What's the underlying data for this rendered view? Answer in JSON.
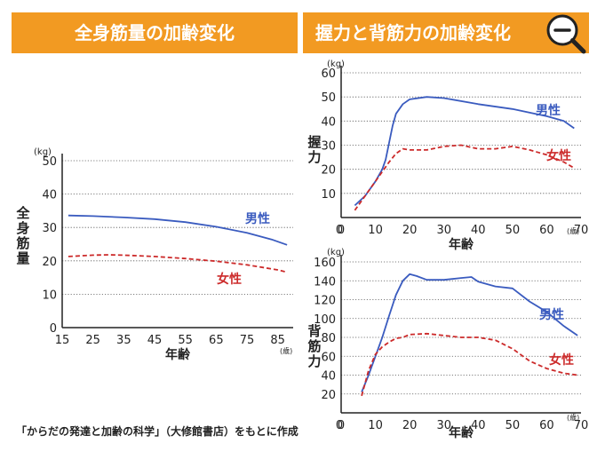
{
  "colors": {
    "banner": "#f29a22",
    "banner_text": "#ffffff",
    "male": "#3a5bbf",
    "female": "#cc2a2a",
    "axis": "#222222",
    "grid": "#555555"
  },
  "banners": {
    "left": "全身筋量の加齢変化",
    "right": "握力と背筋力の加齢変化"
  },
  "zoom_button": {
    "icon": "zoom-out-magnifier-icon"
  },
  "source_note": "「からだの発達と加齢の科学」（大修館書店）をもとに作成",
  "chart_data": [
    {
      "type": "line",
      "title": "全身筋量の加齢変化",
      "ylabel": "全身筋量",
      "yunit": "(kg)",
      "xlabel": "年齢",
      "xunit": "(歳)",
      "xlim": [
        15,
        90
      ],
      "ylim": [
        0,
        50
      ],
      "xticks": [
        15,
        25,
        35,
        45,
        55,
        65,
        75,
        85
      ],
      "yticks": [
        0,
        10,
        20,
        30,
        40,
        50
      ],
      "grid": true,
      "series": [
        {
          "name": "男性",
          "style": "solid",
          "x": [
            17,
            25,
            35,
            45,
            55,
            65,
            75,
            83,
            88
          ],
          "y": [
            33.6,
            33.4,
            33.0,
            32.5,
            31.6,
            30.2,
            28.4,
            26.4,
            24.8
          ]
        },
        {
          "name": "女性",
          "style": "dashed",
          "x": [
            17,
            25,
            30,
            35,
            45,
            55,
            65,
            75,
            85,
            88
          ],
          "y": [
            21.3,
            21.7,
            21.8,
            21.7,
            21.3,
            20.7,
            19.9,
            18.8,
            17.3,
            16.6
          ]
        }
      ]
    },
    {
      "type": "line",
      "title": "握力",
      "ylabel": "握力",
      "yunit": "(kg)",
      "xlabel": "年齢",
      "xunit": "(歳)",
      "xlim": [
        0,
        70
      ],
      "ylim": [
        0,
        60
      ],
      "xticks": [
        0,
        10,
        20,
        30,
        40,
        50,
        60,
        70
      ],
      "yticks": [
        10,
        20,
        30,
        40,
        50,
        60
      ],
      "grid": true,
      "series": [
        {
          "name": "男性",
          "style": "solid",
          "x": [
            4,
            7,
            10,
            12,
            13,
            14,
            15,
            16,
            18,
            20,
            25,
            30,
            40,
            50,
            60,
            65,
            68
          ],
          "y": [
            5,
            9,
            15,
            20,
            24,
            31,
            38,
            43,
            47,
            49,
            50,
            49.5,
            47,
            45,
            42,
            40,
            37
          ]
        },
        {
          "name": "女性",
          "style": "dashed",
          "x": [
            4,
            7,
            10,
            12,
            14,
            16,
            18,
            20,
            25,
            30,
            35,
            40,
            45,
            50,
            55,
            60,
            65,
            68
          ],
          "y": [
            3,
            9,
            15,
            19,
            23,
            26.5,
            28.5,
            28,
            28,
            29.5,
            30,
            28.5,
            28.5,
            29.5,
            28,
            26,
            23,
            20.5
          ]
        }
      ]
    },
    {
      "type": "line",
      "title": "背筋力",
      "ylabel": "背筋力",
      "yunit": "(kg)",
      "xlabel": "年齢",
      "xunit": "(歳)",
      "xlim": [
        0,
        70
      ],
      "ylim": [
        0,
        160
      ],
      "xticks": [
        0,
        10,
        20,
        30,
        40,
        50,
        60,
        70
      ],
      "yticks": [
        20,
        40,
        60,
        80,
        100,
        120,
        140,
        160
      ],
      "grid": true,
      "series": [
        {
          "name": "男性",
          "style": "solid",
          "x": [
            6,
            8,
            10,
            12,
            14,
            16,
            18,
            20,
            22,
            25,
            30,
            35,
            38,
            40,
            45,
            50,
            55,
            60,
            65,
            69
          ],
          "y": [
            22,
            40,
            60,
            80,
            103,
            125,
            140,
            147,
            145,
            141,
            141,
            143,
            144,
            139,
            134,
            132,
            118,
            107,
            92,
            82
          ]
        },
        {
          "name": "女性",
          "style": "dashed",
          "x": [
            6,
            8,
            10,
            12,
            14,
            16,
            18,
            20,
            25,
            30,
            35,
            40,
            45,
            50,
            55,
            60,
            65,
            69
          ],
          "y": [
            18,
            45,
            62,
            70,
            75,
            79,
            80,
            83,
            84,
            82,
            80,
            80,
            77,
            68,
            55,
            47,
            42,
            40
          ]
        }
      ]
    }
  ]
}
